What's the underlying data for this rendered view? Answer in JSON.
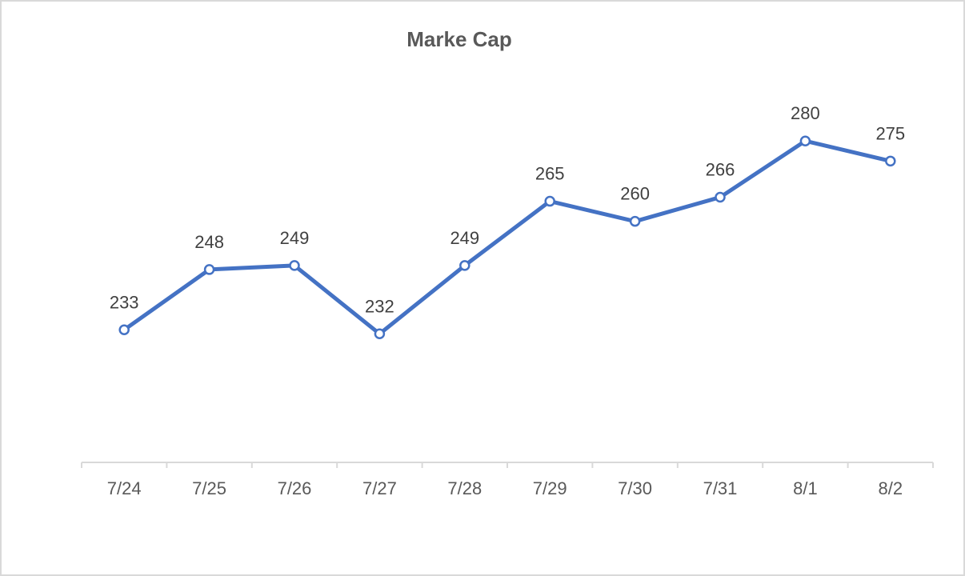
{
  "chart_data": {
    "type": "line",
    "title": "Marke Cap",
    "xlabel": "",
    "ylabel": "",
    "categories": [
      "7/24",
      "7/25",
      "7/26",
      "7/27",
      "7/28",
      "7/29",
      "7/30",
      "7/31",
      "8/1",
      "8/2"
    ],
    "series": [
      {
        "name": "Marke Cap",
        "values": [
          233,
          248,
          249,
          232,
          249,
          265,
          260,
          266,
          280,
          275
        ],
        "color": "#4472c4"
      }
    ],
    "ylim": [
      200,
      290
    ],
    "grid": false,
    "legend": "none",
    "data_labels": true
  }
}
